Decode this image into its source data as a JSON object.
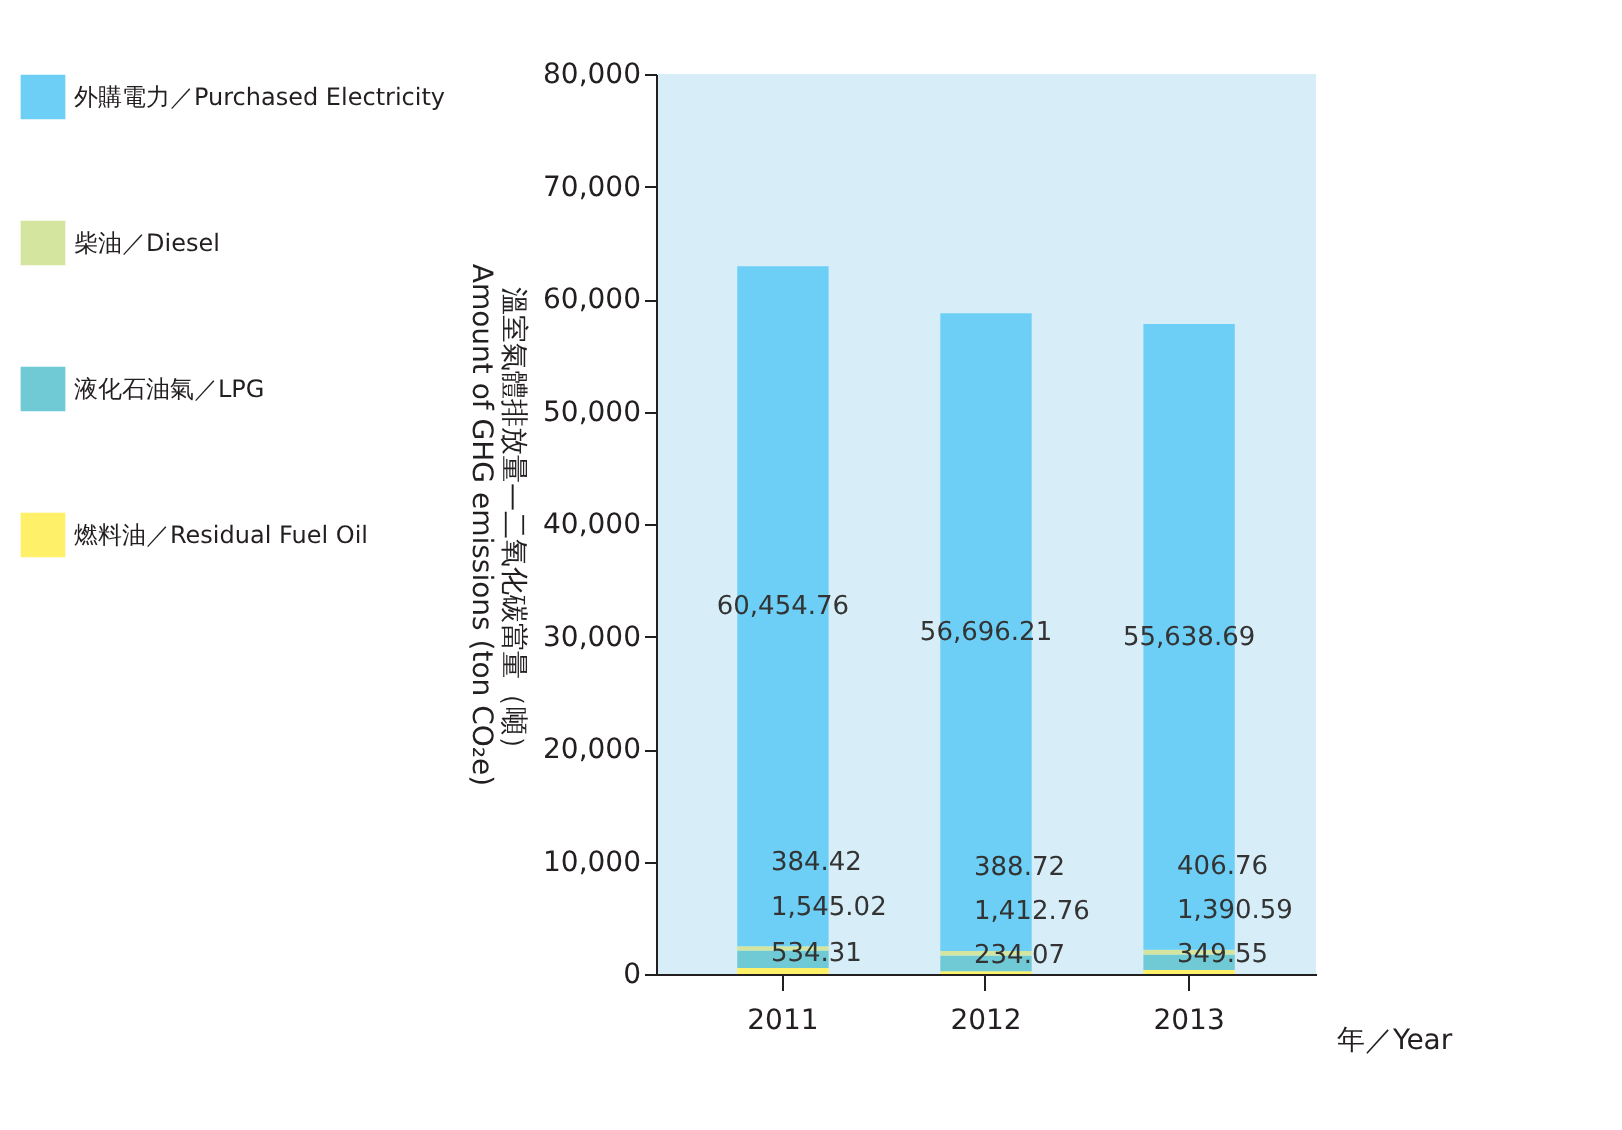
{
  "chart_data": {
    "type": "bar",
    "stacked": true,
    "xlabel": "年／Year",
    "ylabel": "溫室氣體排放量—二氧化碳當量（噸）\nAmount of GHG emissions (ton CO₂e)",
    "categories": [
      "2011",
      "2012",
      "2013"
    ],
    "series": [
      {
        "name": "燃料油／Residual Fuel Oil",
        "color": "#fff06a",
        "values": [
          534.31,
          234.07,
          349.55
        ],
        "value_labels": [
          "534.31",
          "234.07",
          "349.55"
        ]
      },
      {
        "name": "液化石油氣／LPG",
        "color": "#6fcad6",
        "values": [
          1545.02,
          1412.76,
          1390.59
        ],
        "value_labels": [
          "1,545.02",
          "1,412.76",
          "1,390.59"
        ]
      },
      {
        "name": "柴油／Diesel",
        "color": "#d3e59f",
        "values": [
          384.42,
          388.72,
          406.76
        ],
        "value_labels": [
          "384.42",
          "388.72",
          "406.76"
        ]
      },
      {
        "name": "外購電力／Purchased Electricity",
        "color": "#6dcff6",
        "values": [
          60454.76,
          56696.21,
          55638.69
        ],
        "value_labels": [
          "60,454.76",
          "56,696.21",
          "55,638.69"
        ]
      }
    ],
    "ylim": [
      0,
      80000
    ],
    "yticks": [
      {
        "value": 0,
        "label": "0"
      },
      {
        "value": 10000,
        "label": "10,000"
      },
      {
        "value": 20000,
        "label": "20,000"
      },
      {
        "value": 30000,
        "label": "30,000"
      },
      {
        "value": 40000,
        "label": "40,000"
      },
      {
        "value": 50000,
        "label": "50,000"
      },
      {
        "value": 60000,
        "label": "60,000"
      },
      {
        "value": 70000,
        "label": "70,000"
      },
      {
        "value": 80000,
        "label": "80,000"
      }
    ],
    "legend": "left",
    "grid": false,
    "data_labels": true
  }
}
